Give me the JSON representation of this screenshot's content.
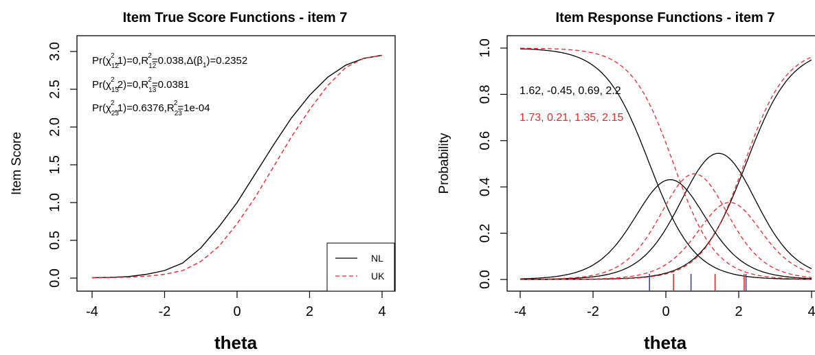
{
  "chart_data": [
    {
      "type": "line",
      "title": "Item True Score Functions - item 7",
      "xlabel": "theta",
      "ylabel": "Item Score",
      "xlim": [
        -4,
        4
      ],
      "ylim": [
        0,
        3
      ],
      "xticks": [
        "-4",
        "-2",
        "0",
        "2",
        "4"
      ],
      "yticks": [
        "0.0",
        "0.5",
        "1.0",
        "1.5",
        "2.0",
        "2.5",
        "3.0"
      ],
      "grid": false,
      "legend_position": "bottom-right",
      "annotations": {
        "line1": {
          "pre": "Pr(χ",
          "sub": "12",
          "sup": "2",
          "mid": ",1)=0,R",
          "sub2": "12",
          "sup2": "2",
          "post": "=0.038,Δ(β",
          "sub3": "1",
          "end": ")=0.2352"
        },
        "line2": {
          "pre": "Pr(χ",
          "sub": "13",
          "sup": "2",
          "mid": ",2)=0,R",
          "sub2": "13",
          "sup2": "2",
          "post": "=0.0381"
        },
        "line3": {
          "pre": "Pr(χ",
          "sub": "23",
          "sup": "2",
          "mid": ",1)=0.6376,R",
          "sub2": "23",
          "sup2": "2",
          "post": "=1e-04"
        }
      },
      "x": [
        -4,
        -3.5,
        -3,
        -2.5,
        -2,
        -1.5,
        -1,
        -0.5,
        0,
        0.5,
        1,
        1.5,
        2,
        2.5,
        3,
        3.5,
        4
      ],
      "series": [
        {
          "name": "NL",
          "color": "#000000",
          "dash": "solid",
          "values": [
            0.005,
            0.01,
            0.02,
            0.05,
            0.1,
            0.2,
            0.4,
            0.68,
            1.0,
            1.38,
            1.76,
            2.12,
            2.42,
            2.66,
            2.82,
            2.91,
            2.95
          ]
        },
        {
          "name": "UK",
          "color": "#e8262a",
          "dash": "dashed",
          "values": [
            0.003,
            0.006,
            0.012,
            0.025,
            0.05,
            0.1,
            0.22,
            0.42,
            0.72,
            1.07,
            1.47,
            1.87,
            2.23,
            2.55,
            2.79,
            2.91,
            2.95
          ]
        }
      ]
    },
    {
      "type": "line",
      "title": "Item Response Functions - item 7",
      "xlabel": "theta",
      "ylabel": "Probability",
      "xlim": [
        -4,
        4
      ],
      "ylim": [
        0,
        1
      ],
      "xticks": [
        "-4",
        "-2",
        "0",
        "2",
        "4"
      ],
      "yticks": [
        "0.0",
        "0.2",
        "0.4",
        "0.6",
        "0.8",
        "1.0"
      ],
      "grid": false,
      "parameter_labels": [
        {
          "text": "1.62, -0.45, 0.69, 2.2",
          "color": "#000000"
        },
        {
          "text": "1.73, 0.21, 1.35, 2.15",
          "color": "#e8262a"
        }
      ],
      "threshold_ticks": [
        {
          "x": -0.45,
          "color": "#3b3bb0"
        },
        {
          "x": 0.69,
          "color": "#3b3bb0"
        },
        {
          "x": 2.2,
          "color": "#3b3bb0"
        },
        {
          "x": 0.21,
          "color": "#e8262a"
        },
        {
          "x": 1.35,
          "color": "#e8262a"
        },
        {
          "x": 2.15,
          "color": "#e8262a"
        }
      ],
      "groups": [
        {
          "color": "#000000",
          "dash": "solid",
          "a": 1.62,
          "b": [
            -0.45,
            0.69,
            2.2
          ]
        },
        {
          "color": "#e8262a",
          "dash": "dashed",
          "a": 1.73,
          "b": [
            0.21,
            1.35,
            2.15
          ]
        }
      ]
    }
  ]
}
